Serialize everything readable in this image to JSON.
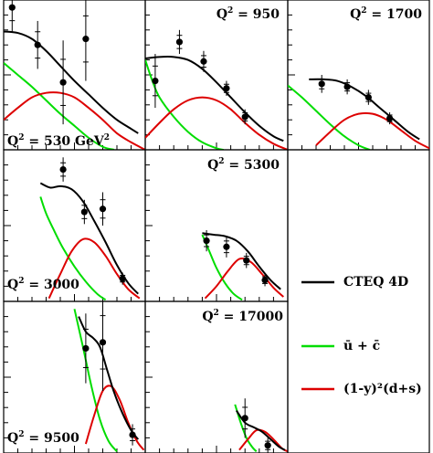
{
  "chart_data": {
    "type": "line",
    "xlabel": "",
    "ylabel": "",
    "legend": {
      "placement": "bottom-right",
      "entries": [
        {
          "label": "CTEQ 4D",
          "color": "#000000"
        },
        {
          "label": "ū + c̄",
          "color": "#00dd00"
        },
        {
          "label": "(1-y)²(d+s)",
          "color": "#dd0000"
        }
      ]
    },
    "panels": [
      {
        "label": "Q² = 530 GeV²",
        "label_prefix": "Q",
        "label_sup": "2",
        "label_value": " = 530 GeV",
        "label_tail_sup": "2",
        "xlim": [
          0,
          1
        ],
        "ylim": [
          0,
          1
        ],
        "points": [
          {
            "x": 0.06,
            "y": 0.95,
            "err": 0.16
          },
          {
            "x": 0.24,
            "y": 0.7,
            "err": 0.16
          },
          {
            "x": 0.42,
            "y": 0.45,
            "err": 0.28
          },
          {
            "x": 0.58,
            "y": 0.74,
            "err": 0.28
          }
        ],
        "cteq": [
          [
            0,
            0.79
          ],
          [
            0.1,
            0.78
          ],
          [
            0.2,
            0.74
          ],
          [
            0.3,
            0.66
          ],
          [
            0.4,
            0.56
          ],
          [
            0.5,
            0.46
          ],
          [
            0.6,
            0.37
          ],
          [
            0.7,
            0.28
          ],
          [
            0.8,
            0.2
          ],
          [
            0.9,
            0.14
          ],
          [
            0.95,
            0.11
          ]
        ],
        "green": [
          [
            0,
            0.58
          ],
          [
            0.1,
            0.5
          ],
          [
            0.2,
            0.42
          ],
          [
            0.3,
            0.33
          ],
          [
            0.4,
            0.24
          ],
          [
            0.5,
            0.16
          ],
          [
            0.6,
            0.08
          ],
          [
            0.7,
            0.02
          ],
          [
            0.78,
            0
          ]
        ],
        "red": [
          [
            0,
            0.2
          ],
          [
            0.1,
            0.28
          ],
          [
            0.2,
            0.35
          ],
          [
            0.3,
            0.38
          ],
          [
            0.4,
            0.38
          ],
          [
            0.5,
            0.35
          ],
          [
            0.6,
            0.28
          ],
          [
            0.7,
            0.2
          ],
          [
            0.8,
            0.11
          ],
          [
            0.9,
            0.05
          ],
          [
            1,
            0
          ]
        ]
      },
      {
        "label": "Q² = 950",
        "label_prefix": "Q",
        "label_sup": "2",
        "label_value": " = 950",
        "label_tail_sup": "",
        "xlim": [
          0,
          1
        ],
        "ylim": [
          0,
          1
        ],
        "points": [
          {
            "x": 0.07,
            "y": 0.46,
            "err": 0.18
          },
          {
            "x": 0.24,
            "y": 0.72,
            "err": 0.08
          },
          {
            "x": 0.41,
            "y": 0.59,
            "err": 0.07
          },
          {
            "x": 0.57,
            "y": 0.41,
            "err": 0.05
          },
          {
            "x": 0.7,
            "y": 0.22,
            "err": 0.05
          }
        ],
        "cteq": [
          [
            0,
            0.61
          ],
          [
            0.1,
            0.62
          ],
          [
            0.2,
            0.62
          ],
          [
            0.3,
            0.6
          ],
          [
            0.4,
            0.54
          ],
          [
            0.5,
            0.45
          ],
          [
            0.6,
            0.35
          ],
          [
            0.7,
            0.25
          ],
          [
            0.8,
            0.16
          ],
          [
            0.9,
            0.09
          ],
          [
            0.97,
            0.06
          ]
        ],
        "green": [
          [
            0,
            0.6
          ],
          [
            0.05,
            0.46
          ],
          [
            0.1,
            0.35
          ],
          [
            0.2,
            0.22
          ],
          [
            0.3,
            0.12
          ],
          [
            0.4,
            0.05
          ],
          [
            0.5,
            0.01
          ],
          [
            0.55,
            0
          ]
        ],
        "red": [
          [
            0,
            0.08
          ],
          [
            0.1,
            0.18
          ],
          [
            0.2,
            0.27
          ],
          [
            0.3,
            0.33
          ],
          [
            0.4,
            0.35
          ],
          [
            0.5,
            0.33
          ],
          [
            0.6,
            0.27
          ],
          [
            0.7,
            0.18
          ],
          [
            0.8,
            0.1
          ],
          [
            0.9,
            0.04
          ],
          [
            1,
            0
          ]
        ]
      },
      {
        "label": "Q² = 1700",
        "label_prefix": "Q",
        "label_sup": "2",
        "label_value": " = 1700",
        "label_tail_sup": "",
        "xlim": [
          0,
          1
        ],
        "ylim": [
          0,
          1
        ],
        "points": [
          {
            "x": 0.24,
            "y": 0.44,
            "err": 0.06
          },
          {
            "x": 0.42,
            "y": 0.42,
            "err": 0.05
          },
          {
            "x": 0.57,
            "y": 0.35,
            "err": 0.05
          },
          {
            "x": 0.72,
            "y": 0.21,
            "err": 0.04
          }
        ],
        "cteq": [
          [
            0.15,
            0.47
          ],
          [
            0.25,
            0.47
          ],
          [
            0.35,
            0.46
          ],
          [
            0.45,
            0.42
          ],
          [
            0.55,
            0.36
          ],
          [
            0.65,
            0.28
          ],
          [
            0.75,
            0.2
          ],
          [
            0.85,
            0.12
          ],
          [
            0.93,
            0.07
          ]
        ],
        "green": [
          [
            0,
            0.43
          ],
          [
            0.1,
            0.35
          ],
          [
            0.2,
            0.26
          ],
          [
            0.3,
            0.17
          ],
          [
            0.4,
            0.09
          ],
          [
            0.5,
            0.03
          ],
          [
            0.58,
            0
          ]
        ],
        "red": [
          [
            0.2,
            0.03
          ],
          [
            0.3,
            0.12
          ],
          [
            0.4,
            0.2
          ],
          [
            0.5,
            0.24
          ],
          [
            0.6,
            0.24
          ],
          [
            0.7,
            0.2
          ],
          [
            0.8,
            0.13
          ],
          [
            0.9,
            0.06
          ],
          [
            1,
            0.01
          ]
        ]
      },
      {
        "label": "Q² = 3000",
        "label_prefix": "Q",
        "label_sup": "2",
        "label_value": " = 3000",
        "label_tail_sup": "",
        "xlim": [
          0,
          1
        ],
        "ylim": [
          0,
          1
        ],
        "points": [
          {
            "x": 0.42,
            "y": 0.87,
            "err": 0.08
          },
          {
            "x": 0.57,
            "y": 0.59,
            "err": 0.08
          },
          {
            "x": 0.7,
            "y": 0.61,
            "err": 0.11
          },
          {
            "x": 0.84,
            "y": 0.15,
            "err": 0.04
          }
        ],
        "cteq": [
          [
            0.26,
            0.78
          ],
          [
            0.33,
            0.75
          ],
          [
            0.4,
            0.76
          ],
          [
            0.48,
            0.74
          ],
          [
            0.56,
            0.66
          ],
          [
            0.64,
            0.53
          ],
          [
            0.72,
            0.39
          ],
          [
            0.8,
            0.24
          ],
          [
            0.88,
            0.12
          ],
          [
            0.95,
            0.05
          ]
        ],
        "green": [
          [
            0.26,
            0.69
          ],
          [
            0.3,
            0.58
          ],
          [
            0.36,
            0.46
          ],
          [
            0.42,
            0.35
          ],
          [
            0.5,
            0.23
          ],
          [
            0.58,
            0.13
          ],
          [
            0.66,
            0.05
          ],
          [
            0.72,
            0.01
          ]
        ],
        "red": [
          [
            0.32,
            0.02
          ],
          [
            0.4,
            0.18
          ],
          [
            0.48,
            0.33
          ],
          [
            0.56,
            0.41
          ],
          [
            0.64,
            0.39
          ],
          [
            0.72,
            0.3
          ],
          [
            0.8,
            0.18
          ],
          [
            0.88,
            0.08
          ],
          [
            0.96,
            0.02
          ]
        ]
      },
      {
        "label": "Q² = 5300",
        "label_prefix": "Q",
        "label_sup": "2",
        "label_value": " = 5300",
        "label_tail_sup": "",
        "xlim": [
          0,
          1
        ],
        "ylim": [
          0,
          1
        ],
        "points": [
          {
            "x": 0.43,
            "y": 0.4,
            "err": 0.07
          },
          {
            "x": 0.57,
            "y": 0.36,
            "err": 0.07
          },
          {
            "x": 0.71,
            "y": 0.27,
            "err": 0.05
          },
          {
            "x": 0.84,
            "y": 0.14,
            "err": 0.04
          }
        ],
        "cteq": [
          [
            0.4,
            0.45
          ],
          [
            0.48,
            0.44
          ],
          [
            0.56,
            0.43
          ],
          [
            0.64,
            0.4
          ],
          [
            0.72,
            0.33
          ],
          [
            0.8,
            0.23
          ],
          [
            0.88,
            0.14
          ],
          [
            0.95,
            0.08
          ]
        ],
        "green": [
          [
            0.4,
            0.44
          ],
          [
            0.45,
            0.33
          ],
          [
            0.5,
            0.22
          ],
          [
            0.56,
            0.12
          ],
          [
            0.62,
            0.05
          ],
          [
            0.68,
            0.01
          ]
        ],
        "red": [
          [
            0.42,
            0.02
          ],
          [
            0.5,
            0.1
          ],
          [
            0.58,
            0.2
          ],
          [
            0.66,
            0.28
          ],
          [
            0.74,
            0.26
          ],
          [
            0.82,
            0.18
          ],
          [
            0.9,
            0.09
          ],
          [
            0.97,
            0.03
          ]
        ]
      },
      {
        "label": "Q² = 9500",
        "label_prefix": "Q",
        "label_sup": "2",
        "label_value": " = 9500",
        "label_tail_sup": "",
        "xlim": [
          0,
          1
        ],
        "ylim": [
          0,
          1
        ],
        "points": [
          {
            "x": 0.58,
            "y": 0.69,
            "err": 0.23
          },
          {
            "x": 0.7,
            "y": 0.73,
            "err": 0.32
          },
          {
            "x": 0.91,
            "y": 0.12,
            "err": 0.07
          }
        ],
        "cteq": [
          [
            0.53,
            0.9
          ],
          [
            0.58,
            0.8
          ],
          [
            0.63,
            0.76
          ],
          [
            0.68,
            0.7
          ],
          [
            0.73,
            0.55
          ],
          [
            0.78,
            0.4
          ],
          [
            0.84,
            0.26
          ],
          [
            0.9,
            0.15
          ],
          [
            0.95,
            0.09
          ]
        ],
        "green": [
          [
            0.5,
            0.95
          ],
          [
            0.56,
            0.7
          ],
          [
            0.62,
            0.44
          ],
          [
            0.68,
            0.22
          ],
          [
            0.74,
            0.08
          ],
          [
            0.8,
            0.01
          ]
        ],
        "red": [
          [
            0.58,
            0.06
          ],
          [
            0.64,
            0.25
          ],
          [
            0.7,
            0.41
          ],
          [
            0.76,
            0.44
          ],
          [
            0.82,
            0.35
          ],
          [
            0.88,
            0.2
          ],
          [
            0.94,
            0.08
          ],
          [
            0.99,
            0.02
          ]
        ]
      },
      {
        "label": "Q² = 17000",
        "label_prefix": "Q",
        "label_sup": "2",
        "label_value": " = 17000",
        "label_tail_sup": "",
        "xlim": [
          0,
          1
        ],
        "ylim": [
          0,
          1
        ],
        "points": [
          {
            "x": 0.7,
            "y": 0.23,
            "err": 0.13
          },
          {
            "x": 0.86,
            "y": 0.05,
            "err": 0.05
          }
        ],
        "cteq": [
          [
            0.64,
            0.28
          ],
          [
            0.7,
            0.2
          ],
          [
            0.76,
            0.17
          ],
          [
            0.82,
            0.14
          ],
          [
            0.88,
            0.09
          ],
          [
            0.94,
            0.04
          ],
          [
            0.98,
            0.02
          ]
        ],
        "green": [
          [
            0.63,
            0.32
          ],
          [
            0.67,
            0.2
          ],
          [
            0.71,
            0.1
          ],
          [
            0.75,
            0.04
          ],
          [
            0.78,
            0.01
          ]
        ],
        "red": [
          [
            0.66,
            0.02
          ],
          [
            0.72,
            0.09
          ],
          [
            0.78,
            0.15
          ],
          [
            0.84,
            0.14
          ],
          [
            0.9,
            0.09
          ],
          [
            0.96,
            0.03
          ],
          [
            1,
            0.01
          ]
        ]
      }
    ]
  }
}
